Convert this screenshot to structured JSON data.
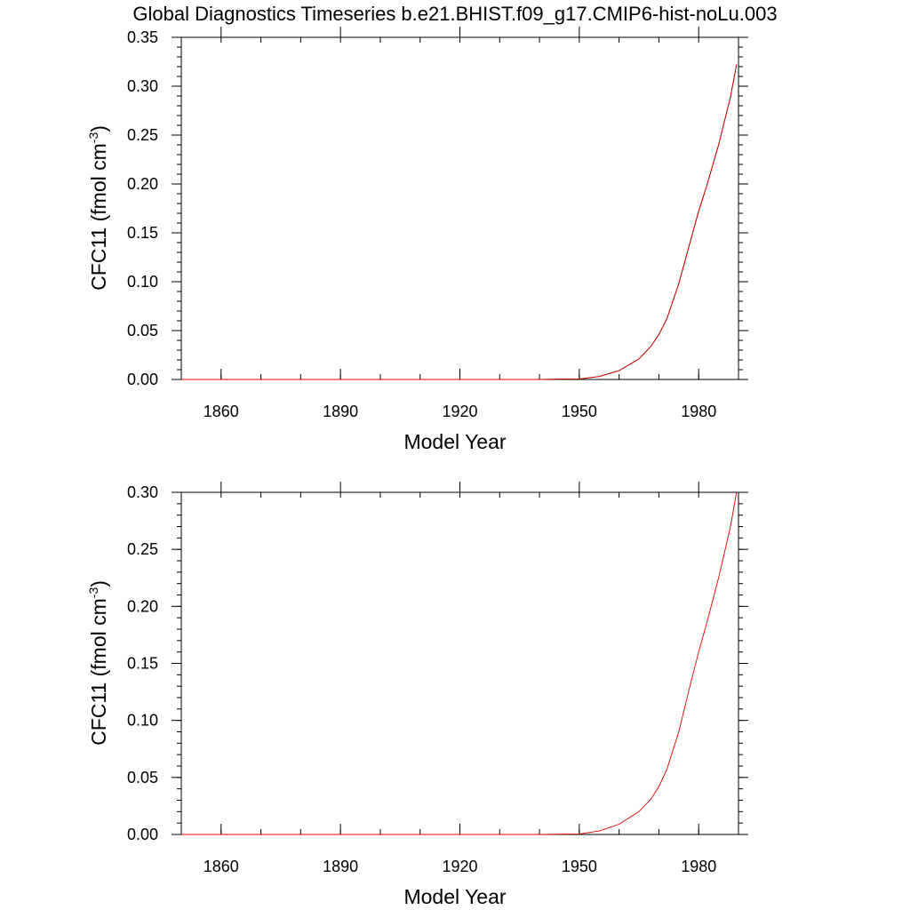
{
  "page_title": "Global Diagnostics Timeseries b.e21.BHIST.f09_g17.CMIP6-hist-noLu.003",
  "colors": {
    "black_series": "#000000",
    "red_series": "#e00000"
  },
  "chart_data": [
    {
      "type": "line",
      "xlabel": "Model Year",
      "ylabel_main": "CFC11 (fmol cm",
      "ylabel_sup": "-3",
      "ylabel_end": ")",
      "xlim": [
        1850,
        1990
      ],
      "ylim": [
        0,
        0.35
      ],
      "xticks": [
        1860,
        1890,
        1920,
        1950,
        1980
      ],
      "yticks": [
        0.0,
        0.05,
        0.1,
        0.15,
        0.2,
        0.25,
        0.3,
        0.35
      ],
      "ytick_labels": [
        "0.00",
        "0.05",
        "0.10",
        "0.15",
        "0.20",
        "0.25",
        "0.30",
        "0.35"
      ],
      "grid": false,
      "series": [
        {
          "color": "#000000",
          "x": [
            1850,
            1940,
            1950,
            1955,
            1960,
            1965,
            1968,
            1970,
            1972,
            1975,
            1978,
            1980,
            1982,
            1985,
            1988,
            1989.5
          ],
          "y": [
            0,
            0,
            0.0005,
            0.003,
            0.009,
            0.021,
            0.034,
            0.046,
            0.062,
            0.098,
            0.143,
            0.172,
            0.198,
            0.24,
            0.289,
            0.322
          ]
        },
        {
          "color": "#e00000",
          "x": [
            1850,
            1940,
            1950,
            1955,
            1960,
            1965,
            1968,
            1970,
            1972,
            1975,
            1978,
            1980,
            1982,
            1985,
            1988,
            1989.5
          ],
          "y": [
            0,
            0,
            0.0005,
            0.003,
            0.009,
            0.021,
            0.034,
            0.046,
            0.062,
            0.098,
            0.143,
            0.172,
            0.198,
            0.24,
            0.289,
            0.322
          ]
        }
      ]
    },
    {
      "type": "line",
      "xlabel": "Model Year",
      "ylabel_main": "CFC11 (fmol cm",
      "ylabel_sup": "-3",
      "ylabel_end": ")",
      "xlim": [
        1850,
        1990
      ],
      "ylim": [
        0,
        0.3
      ],
      "xticks": [
        1860,
        1890,
        1920,
        1950,
        1980
      ],
      "yticks": [
        0.0,
        0.05,
        0.1,
        0.15,
        0.2,
        0.25,
        0.3
      ],
      "ytick_labels": [
        "0.00",
        "0.05",
        "0.10",
        "0.15",
        "0.20",
        "0.25",
        "0.30"
      ],
      "grid": false,
      "series": [
        {
          "color": "#e00000",
          "x": [
            1850,
            1940,
            1950,
            1955,
            1960,
            1965,
            1968,
            1970,
            1972,
            1975,
            1978,
            1980,
            1982,
            1985,
            1988,
            1989.5
          ],
          "y": [
            0,
            0,
            0.0005,
            0.003,
            0.009,
            0.02,
            0.031,
            0.042,
            0.057,
            0.09,
            0.133,
            0.16,
            0.185,
            0.225,
            0.27,
            0.3
          ]
        }
      ]
    }
  ]
}
